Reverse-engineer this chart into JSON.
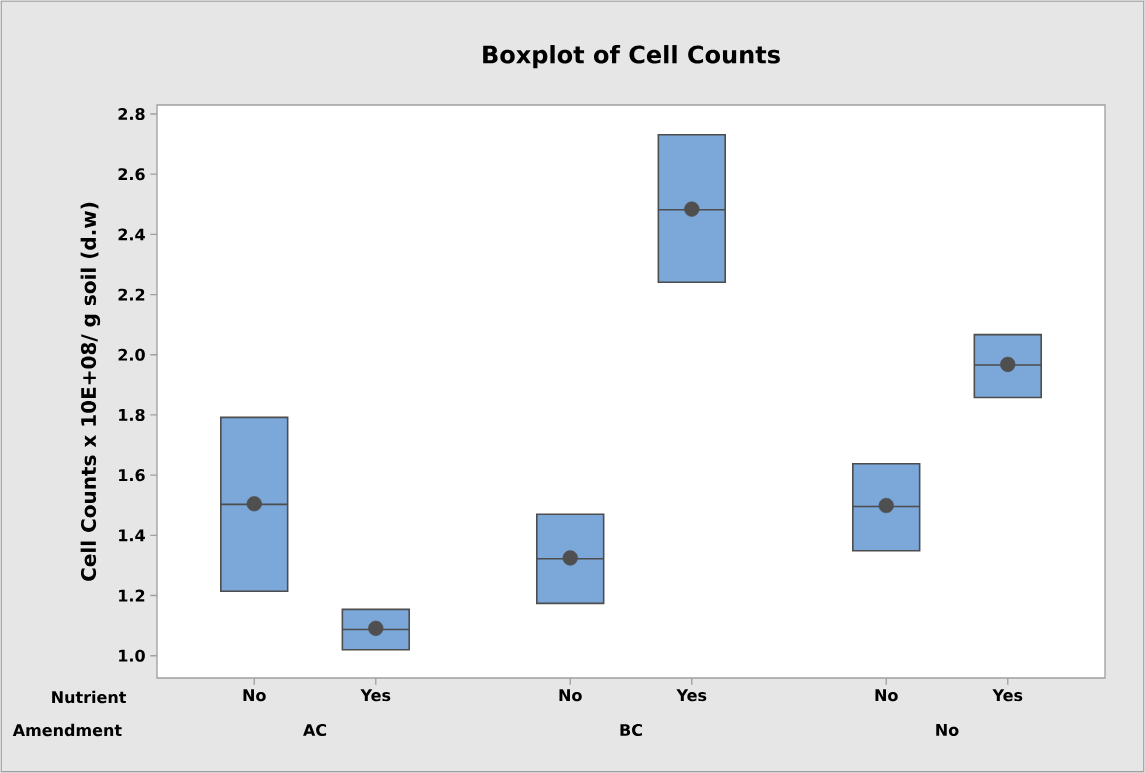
{
  "chart_data": {
    "type": "box",
    "title": "Boxplot of Cell Counts",
    "ylabel": "Cell Counts x 10E+08/ g soil (d.w)",
    "categories": [
      "No",
      "Yes",
      "No",
      "Yes",
      "No",
      "Yes"
    ],
    "annotations": [
      "Nutrient",
      "Amendment",
      "AC",
      "BC",
      "No"
    ],
    "color": "#7ba7d9",
    "boxes": [
      {
        "low": 1.214,
        "q1": 1.214,
        "median": 1.503,
        "q3": 1.792,
        "high": 1.792,
        "mean": 1.505
      },
      {
        "low": 1.02,
        "q1": 1.02,
        "median": 1.087,
        "q3": 1.154,
        "high": 1.154,
        "mean": 1.091
      },
      {
        "low": 1.174,
        "q1": 1.174,
        "median": 1.322,
        "q3": 1.47,
        "high": 1.47,
        "mean": 1.325
      },
      {
        "low": 2.241,
        "q1": 2.241,
        "median": 2.482,
        "q3": 2.731,
        "high": 2.731,
        "mean": 2.484
      },
      {
        "low": 1.349,
        "q1": 1.349,
        "median": 1.496,
        "q3": 1.638,
        "high": 1.638,
        "mean": 1.499
      },
      {
        "low": 1.858,
        "q1": 1.858,
        "median": 1.966,
        "q3": 2.067,
        "high": 2.067,
        "mean": 1.968
      }
    ],
    "ylim": [
      0.926,
      2.83
    ],
    "yticks": [
      {
        "value": 1.0,
        "label": "1.0"
      },
      {
        "value": 1.2,
        "label": "1.2"
      },
      {
        "value": 1.4,
        "label": "1.4"
      },
      {
        "value": 1.6,
        "label": "1.6"
      },
      {
        "value": 1.8,
        "label": "1.8"
      },
      {
        "value": 2.0,
        "label": "2.0"
      },
      {
        "value": 2.2,
        "label": "2.2"
      },
      {
        "value": 2.4,
        "label": "2.4"
      },
      {
        "value": 2.6,
        "label": "2.6"
      },
      {
        "value": 2.8,
        "label": "2.8"
      }
    ],
    "grid": false
  }
}
